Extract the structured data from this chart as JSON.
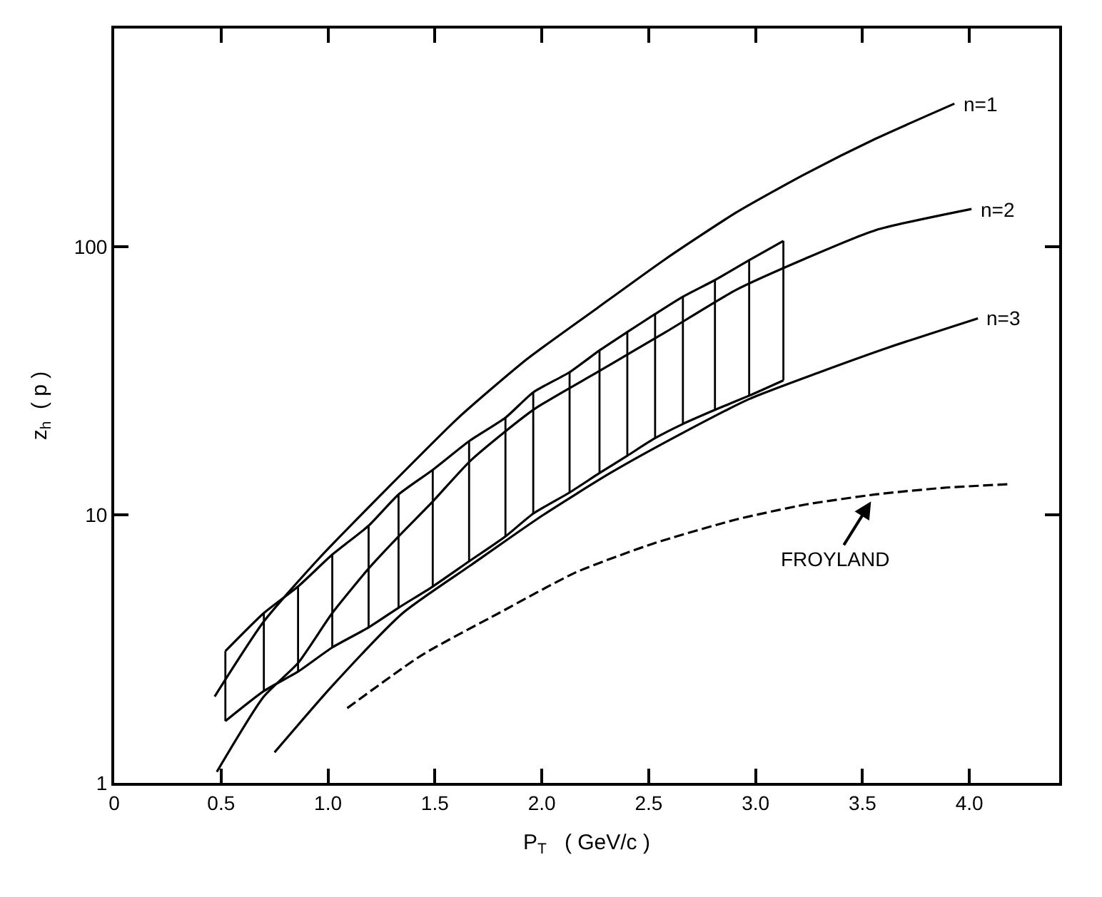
{
  "chart_data": {
    "type": "line",
    "xlabel": "P$_{T}$   ( GeV/c )",
    "ylabel": "z$_{h}$  ( p )",
    "xlim": [
      0,
      4.42
    ],
    "ylim": [
      1,
      650
    ],
    "log": "y",
    "legend": false,
    "marker": "none",
    "xticks": [
      0,
      0.5,
      {
        "value": 1.0,
        "label": "1.0"
      },
      1.5,
      {
        "value": 2.0,
        "label": "2.0"
      },
      2.5,
      {
        "value": 3.0,
        "label": "3.0"
      },
      3.5,
      {
        "value": 4.0,
        "label": "4.0"
      }
    ],
    "yticks": [
      1,
      10,
      100
    ],
    "series": [
      {
        "name": "n=1",
        "color": "#000000",
        "line_style": "solid",
        "x": [
          0.47,
          0.7,
          0.96,
          1.28,
          1.61,
          1.93,
          2.26,
          2.58,
          2.91,
          3.23,
          3.56,
          3.93
        ],
        "values": [
          2.1,
          4.0,
          6.9,
          12.6,
          23,
          38,
          59,
          90,
          134,
          186,
          252,
          341
        ]
      },
      {
        "name": "n=2",
        "color": "#000000",
        "line_style": "solid",
        "x": [
          0.48,
          0.7,
          0.86,
          1.02,
          1.19,
          1.33,
          1.49,
          1.67,
          1.96,
          2.26,
          2.58,
          2.91,
          3.23,
          3.56,
          4.01
        ],
        "values": [
          1.1,
          2.1,
          2.8,
          4.3,
          6.3,
          8.3,
          11.2,
          16,
          24.6,
          34,
          48,
          69,
          90,
          115,
          138
        ]
      },
      {
        "name": "n=3",
        "color": "#000000",
        "line_style": "solid",
        "x": [
          0.75,
          1.02,
          1.35,
          1.67,
          2.0,
          2.32,
          2.65,
          2.97,
          3.3,
          3.62,
          4.04
        ],
        "values": [
          1.3,
          2.3,
          4.3,
          6.5,
          9.9,
          14.3,
          20,
          27,
          34,
          42,
          54
        ]
      },
      {
        "color": "#000000",
        "line_style": "dashed",
        "x": [
          1.09,
          1.44,
          1.8,
          2.16,
          2.52,
          2.91,
          3.23,
          3.56,
          3.88,
          4.19
        ],
        "values": [
          1.9,
          3.0,
          4.3,
          6.1,
          7.8,
          9.6,
          10.9,
          11.9,
          12.6,
          13.0
        ]
      },
      {
        "color": "#000000",
        "line_style": "solid",
        "x": [
          0.52,
          0.7,
          0.86,
          1.02,
          1.19,
          1.33,
          1.49,
          1.66,
          1.83,
          1.96,
          2.13,
          2.27,
          2.4,
          2.53,
          2.66,
          2.81,
          2.97,
          3.13
        ],
        "values": [
          3.1,
          4.3,
          5.4,
          7.1,
          9.1,
          11.9,
          14.7,
          18.8,
          23,
          28.6,
          34,
          41,
          48,
          56,
          65,
          75,
          89,
          105
        ],
        "errors": [
          [
            1.7,
            3.1
          ],
          [
            2.2,
            4.3
          ],
          [
            2.6,
            5.4
          ],
          [
            3.2,
            7.1
          ],
          [
            3.8,
            9.1
          ],
          [
            4.5,
            11.9
          ],
          [
            5.4,
            14.7
          ],
          [
            6.7,
            18.8
          ],
          [
            8.3,
            23
          ],
          [
            10.1,
            28.6
          ],
          [
            12.1,
            34
          ],
          [
            14.3,
            41
          ],
          [
            16.6,
            48
          ],
          [
            19.3,
            56
          ],
          [
            21.8,
            65
          ],
          [
            24.6,
            75
          ],
          [
            27.8,
            89
          ],
          [
            31.7,
            105
          ]
        ]
      },
      {
        "color": "#000000",
        "line_style": "solid",
        "x": [
          0.52,
          0.7,
          0.86,
          1.02,
          1.19,
          1.33,
          1.49,
          1.66,
          1.83,
          1.96,
          2.13,
          2.27,
          2.4,
          2.53,
          2.66,
          2.81,
          2.97,
          3.13
        ],
        "values": [
          1.7,
          2.2,
          2.6,
          3.2,
          3.8,
          4.5,
          5.4,
          6.7,
          8.3,
          10.1,
          12.1,
          14.3,
          16.6,
          19.3,
          21.8,
          24.6,
          27.8,
          31.7
        ]
      }
    ],
    "annotations": [
      {
        "text": "FROYLAND",
        "x": 3.54,
        "y": 11.2
      }
    ]
  }
}
